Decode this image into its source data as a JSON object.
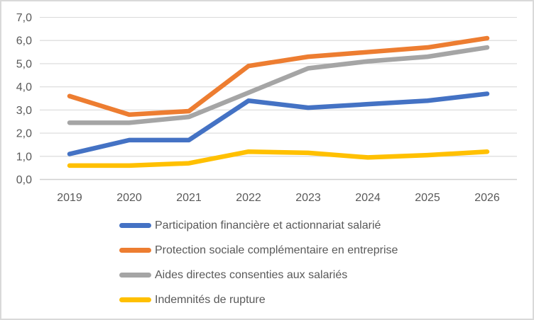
{
  "chart_data": {
    "type": "line",
    "title": "",
    "xlabel": "",
    "ylabel": "",
    "x": [
      "2019",
      "2020",
      "2021",
      "2022",
      "2023",
      "2024",
      "2025",
      "2026"
    ],
    "series": [
      {
        "name": "Participation financière et actionnariat salarié",
        "color": "#4472C4",
        "values": [
          1.1,
          1.7,
          1.7,
          3.4,
          3.1,
          3.25,
          3.4,
          3.7
        ]
      },
      {
        "name": "Protection sociale complémentaire en entreprise",
        "color": "#ED7D31",
        "values": [
          3.6,
          2.8,
          2.95,
          4.9,
          5.3,
          5.5,
          5.7,
          6.1
        ]
      },
      {
        "name": "Aides directes consenties aux salariés",
        "color": "#A5A5A5",
        "values": [
          2.45,
          2.45,
          2.7,
          3.75,
          4.8,
          5.1,
          5.3,
          5.7
        ]
      },
      {
        "name": "Indemnités de rupture",
        "color": "#FFC000",
        "values": [
          0.6,
          0.6,
          0.7,
          1.2,
          1.15,
          0.95,
          1.05,
          1.2
        ]
      }
    ],
    "ylim": [
      0,
      7
    ],
    "ytick_step": 1,
    "ytick_labels": [
      "0,0",
      "1,0",
      "2,0",
      "3,0",
      "4,0",
      "5,0",
      "6,0",
      "7,0"
    ],
    "grid": true,
    "legend_position": "bottom-left",
    "colors": {
      "background": "#FFFFFF",
      "border": "#D9D9D9",
      "gridline": "#D9D9D9",
      "axis_line": "#D0D0D0",
      "axis_text": "#595959",
      "legend_text": "#595959"
    }
  }
}
